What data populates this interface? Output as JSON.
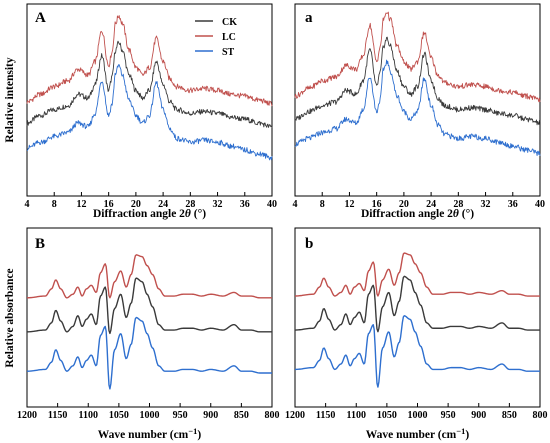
{
  "chart_data": [
    {
      "id": "A",
      "type": "line",
      "label": "A",
      "xlabel_parts": [
        "Diffraction angle 2",
        "θ",
        " (°)"
      ],
      "ylabel": "Relative intensity",
      "xlim": [
        4,
        40
      ],
      "x_ticks": [
        4,
        8,
        12,
        16,
        20,
        24,
        28,
        32,
        36,
        40
      ],
      "legend": [
        "CK",
        "LC",
        "ST"
      ],
      "series": [
        {
          "name": "CK",
          "color": "#3a3a3a",
          "x": [
            4,
            6,
            8,
            10,
            11.5,
            13,
            14,
            15,
            16,
            16.5,
            17,
            17.5,
            18,
            19,
            20,
            21,
            22,
            23,
            24,
            25,
            26,
            28,
            30,
            32,
            34,
            36,
            38,
            40
          ],
          "y": [
            0.38,
            0.42,
            0.45,
            0.47,
            0.53,
            0.51,
            0.58,
            0.73,
            0.55,
            0.62,
            0.76,
            0.8,
            0.76,
            0.63,
            0.55,
            0.51,
            0.55,
            0.7,
            0.58,
            0.49,
            0.45,
            0.43,
            0.44,
            0.43,
            0.41,
            0.4,
            0.38,
            0.36
          ]
        },
        {
          "name": "LC",
          "color": "#c0504d",
          "x": [
            4,
            6,
            8,
            10,
            11.5,
            13,
            14,
            15,
            16,
            16.5,
            17,
            17.5,
            18,
            19,
            20,
            21,
            22,
            23,
            24,
            25,
            26,
            28,
            30,
            32,
            34,
            36,
            38,
            40
          ],
          "y": [
            0.49,
            0.53,
            0.57,
            0.6,
            0.66,
            0.63,
            0.7,
            0.86,
            0.68,
            0.75,
            0.9,
            0.94,
            0.9,
            0.76,
            0.67,
            0.63,
            0.67,
            0.82,
            0.7,
            0.61,
            0.57,
            0.55,
            0.56,
            0.55,
            0.53,
            0.52,
            0.5,
            0.48
          ]
        },
        {
          "name": "ST",
          "color": "#2e6fcf",
          "x": [
            4,
            6,
            8,
            10,
            11.5,
            13,
            14,
            15,
            16,
            16.5,
            17,
            17.5,
            18,
            19,
            20,
            21,
            22,
            23,
            24,
            25,
            26,
            28,
            30,
            32,
            34,
            36,
            38,
            40
          ],
          "y": [
            0.25,
            0.28,
            0.31,
            0.33,
            0.38,
            0.36,
            0.43,
            0.6,
            0.42,
            0.48,
            0.64,
            0.68,
            0.63,
            0.5,
            0.42,
            0.38,
            0.42,
            0.59,
            0.45,
            0.35,
            0.3,
            0.28,
            0.29,
            0.28,
            0.26,
            0.24,
            0.22,
            0.2
          ]
        }
      ]
    },
    {
      "id": "a",
      "type": "line",
      "label": "a",
      "xlabel_parts": [
        "Diffraction angle 2",
        "θ",
        " (°)"
      ],
      "ylabel": "",
      "xlim": [
        4,
        40
      ],
      "x_ticks": [
        4,
        8,
        12,
        16,
        20,
        24,
        28,
        32,
        36,
        40
      ],
      "series": [
        {
          "name": "CK",
          "color": "#3a3a3a",
          "x": [
            4,
            6,
            8,
            10,
            11.5,
            13,
            14,
            15,
            16,
            16.5,
            17,
            17.5,
            18,
            19,
            20,
            21,
            22,
            23,
            24,
            25,
            26,
            28,
            30,
            32,
            34,
            36,
            38,
            40
          ],
          "y": [
            0.4,
            0.44,
            0.47,
            0.49,
            0.55,
            0.53,
            0.6,
            0.76,
            0.57,
            0.64,
            0.78,
            0.82,
            0.78,
            0.65,
            0.57,
            0.53,
            0.57,
            0.74,
            0.6,
            0.51,
            0.47,
            0.45,
            0.46,
            0.45,
            0.43,
            0.42,
            0.4,
            0.38
          ]
        },
        {
          "name": "LC",
          "color": "#c0504d",
          "x": [
            4,
            6,
            8,
            10,
            11.5,
            13,
            14,
            15,
            16,
            16.5,
            17,
            17.5,
            18,
            19,
            20,
            21,
            22,
            23,
            24,
            25,
            26,
            28,
            30,
            32,
            34,
            36,
            38,
            40
          ],
          "y": [
            0.52,
            0.56,
            0.6,
            0.62,
            0.68,
            0.66,
            0.73,
            0.89,
            0.7,
            0.77,
            0.92,
            0.96,
            0.92,
            0.78,
            0.7,
            0.66,
            0.7,
            0.85,
            0.72,
            0.63,
            0.59,
            0.57,
            0.58,
            0.57,
            0.55,
            0.54,
            0.52,
            0.5
          ]
        },
        {
          "name": "ST",
          "color": "#2e6fcf",
          "x": [
            4,
            6,
            8,
            10,
            11.5,
            13,
            14,
            15,
            16,
            16.5,
            17,
            17.5,
            18,
            19,
            20,
            21,
            22,
            23,
            24,
            25,
            26,
            28,
            30,
            32,
            34,
            36,
            38,
            40
          ],
          "y": [
            0.27,
            0.3,
            0.33,
            0.35,
            0.4,
            0.38,
            0.45,
            0.62,
            0.44,
            0.5,
            0.66,
            0.7,
            0.65,
            0.52,
            0.44,
            0.4,
            0.44,
            0.61,
            0.47,
            0.37,
            0.32,
            0.3,
            0.31,
            0.3,
            0.28,
            0.26,
            0.24,
            0.22
          ]
        }
      ]
    },
    {
      "id": "B",
      "type": "line",
      "label": "B",
      "xlabel_parts": [
        "Wave number (cm",
        "−1",
        ")"
      ],
      "ylabel": "Relative absorbance",
      "xlim": [
        1200,
        800
      ],
      "x_ticks": [
        1200,
        1150,
        1100,
        1050,
        1000,
        950,
        900,
        850,
        800
      ],
      "series": [
        {
          "name": "LC",
          "color": "#c0504d",
          "x": [
            1200,
            1170,
            1160,
            1153,
            1145,
            1135,
            1125,
            1117,
            1110,
            1103,
            1095,
            1087,
            1080,
            1072,
            1065,
            1057,
            1047,
            1038,
            1030,
            1022,
            1012,
            1004,
            995,
            985,
            975,
            960,
            945,
            930,
            915,
            900,
            880,
            862,
            850,
            835,
            820,
            800
          ],
          "y": [
            0.61,
            0.62,
            0.66,
            0.71,
            0.66,
            0.61,
            0.63,
            0.67,
            0.62,
            0.66,
            0.68,
            0.64,
            0.75,
            0.8,
            0.61,
            0.7,
            0.76,
            0.67,
            0.74,
            0.85,
            0.84,
            0.79,
            0.74,
            0.66,
            0.62,
            0.62,
            0.63,
            0.63,
            0.62,
            0.63,
            0.62,
            0.64,
            0.62,
            0.62,
            0.61,
            0.61
          ]
        },
        {
          "name": "CK",
          "color": "#3a3a3a",
          "x": [
            1200,
            1170,
            1160,
            1153,
            1145,
            1135,
            1125,
            1117,
            1110,
            1103,
            1095,
            1087,
            1080,
            1072,
            1065,
            1057,
            1047,
            1038,
            1030,
            1022,
            1012,
            1004,
            995,
            985,
            975,
            960,
            945,
            930,
            915,
            900,
            880,
            862,
            850,
            835,
            820,
            800
          ],
          "y": [
            0.42,
            0.43,
            0.47,
            0.54,
            0.48,
            0.42,
            0.45,
            0.51,
            0.45,
            0.49,
            0.52,
            0.46,
            0.62,
            0.67,
            0.41,
            0.55,
            0.63,
            0.5,
            0.58,
            0.72,
            0.7,
            0.63,
            0.56,
            0.46,
            0.43,
            0.43,
            0.44,
            0.44,
            0.43,
            0.44,
            0.43,
            0.46,
            0.43,
            0.43,
            0.42,
            0.42
          ]
        },
        {
          "name": "ST",
          "color": "#2e6fcf",
          "x": [
            1200,
            1170,
            1160,
            1153,
            1145,
            1135,
            1125,
            1117,
            1110,
            1103,
            1095,
            1087,
            1080,
            1072,
            1065,
            1057,
            1047,
            1038,
            1030,
            1022,
            1012,
            1004,
            995,
            985,
            975,
            960,
            945,
            930,
            915,
            900,
            880,
            862,
            850,
            835,
            820,
            800
          ],
          "y": [
            0.2,
            0.21,
            0.25,
            0.32,
            0.26,
            0.2,
            0.23,
            0.28,
            0.22,
            0.26,
            0.29,
            0.23,
            0.4,
            0.45,
            0.1,
            0.32,
            0.41,
            0.27,
            0.35,
            0.5,
            0.48,
            0.41,
            0.33,
            0.23,
            0.2,
            0.2,
            0.21,
            0.21,
            0.2,
            0.21,
            0.2,
            0.23,
            0.2,
            0.2,
            0.19,
            0.19
          ]
        }
      ]
    },
    {
      "id": "b",
      "type": "line",
      "label": "b",
      "xlabel_parts": [
        "Wave number (cm",
        "−1",
        ")"
      ],
      "ylabel": "",
      "xlim": [
        1200,
        800
      ],
      "x_ticks": [
        1200,
        1150,
        1100,
        1050,
        1000,
        950,
        900,
        850,
        800
      ],
      "series": [
        {
          "name": "LC",
          "color": "#c0504d",
          "x": [
            1200,
            1170,
            1160,
            1153,
            1145,
            1135,
            1125,
            1117,
            1110,
            1103,
            1095,
            1087,
            1080,
            1072,
            1065,
            1057,
            1047,
            1038,
            1030,
            1022,
            1012,
            1004,
            995,
            985,
            975,
            960,
            945,
            930,
            915,
            900,
            880,
            862,
            850,
            835,
            820,
            800
          ],
          "y": [
            0.62,
            0.63,
            0.67,
            0.72,
            0.67,
            0.62,
            0.64,
            0.68,
            0.63,
            0.67,
            0.69,
            0.65,
            0.76,
            0.81,
            0.62,
            0.71,
            0.77,
            0.68,
            0.75,
            0.86,
            0.85,
            0.8,
            0.75,
            0.67,
            0.63,
            0.63,
            0.64,
            0.64,
            0.63,
            0.64,
            0.63,
            0.65,
            0.63,
            0.63,
            0.62,
            0.62
          ]
        },
        {
          "name": "CK",
          "color": "#3a3a3a",
          "x": [
            1200,
            1170,
            1160,
            1153,
            1145,
            1135,
            1125,
            1117,
            1110,
            1103,
            1095,
            1087,
            1080,
            1072,
            1065,
            1057,
            1047,
            1038,
            1030,
            1022,
            1012,
            1004,
            995,
            985,
            975,
            960,
            945,
            930,
            915,
            900,
            880,
            862,
            850,
            835,
            820,
            800
          ],
          "y": [
            0.43,
            0.44,
            0.48,
            0.55,
            0.49,
            0.43,
            0.46,
            0.52,
            0.46,
            0.5,
            0.53,
            0.47,
            0.63,
            0.68,
            0.42,
            0.56,
            0.64,
            0.51,
            0.59,
            0.73,
            0.71,
            0.64,
            0.57,
            0.47,
            0.44,
            0.44,
            0.45,
            0.45,
            0.44,
            0.45,
            0.44,
            0.47,
            0.44,
            0.44,
            0.43,
            0.43
          ]
        },
        {
          "name": "ST",
          "color": "#2e6fcf",
          "x": [
            1200,
            1170,
            1160,
            1153,
            1145,
            1135,
            1125,
            1117,
            1110,
            1103,
            1095,
            1087,
            1080,
            1072,
            1065,
            1057,
            1047,
            1038,
            1030,
            1022,
            1012,
            1004,
            995,
            985,
            975,
            960,
            945,
            930,
            915,
            900,
            880,
            862,
            850,
            835,
            820,
            800
          ],
          "y": [
            0.21,
            0.22,
            0.26,
            0.33,
            0.27,
            0.21,
            0.24,
            0.29,
            0.23,
            0.27,
            0.3,
            0.24,
            0.41,
            0.46,
            0.11,
            0.33,
            0.42,
            0.28,
            0.36,
            0.51,
            0.49,
            0.42,
            0.34,
            0.24,
            0.21,
            0.21,
            0.22,
            0.22,
            0.21,
            0.22,
            0.21,
            0.24,
            0.21,
            0.21,
            0.2,
            0.2
          ]
        }
      ]
    }
  ]
}
